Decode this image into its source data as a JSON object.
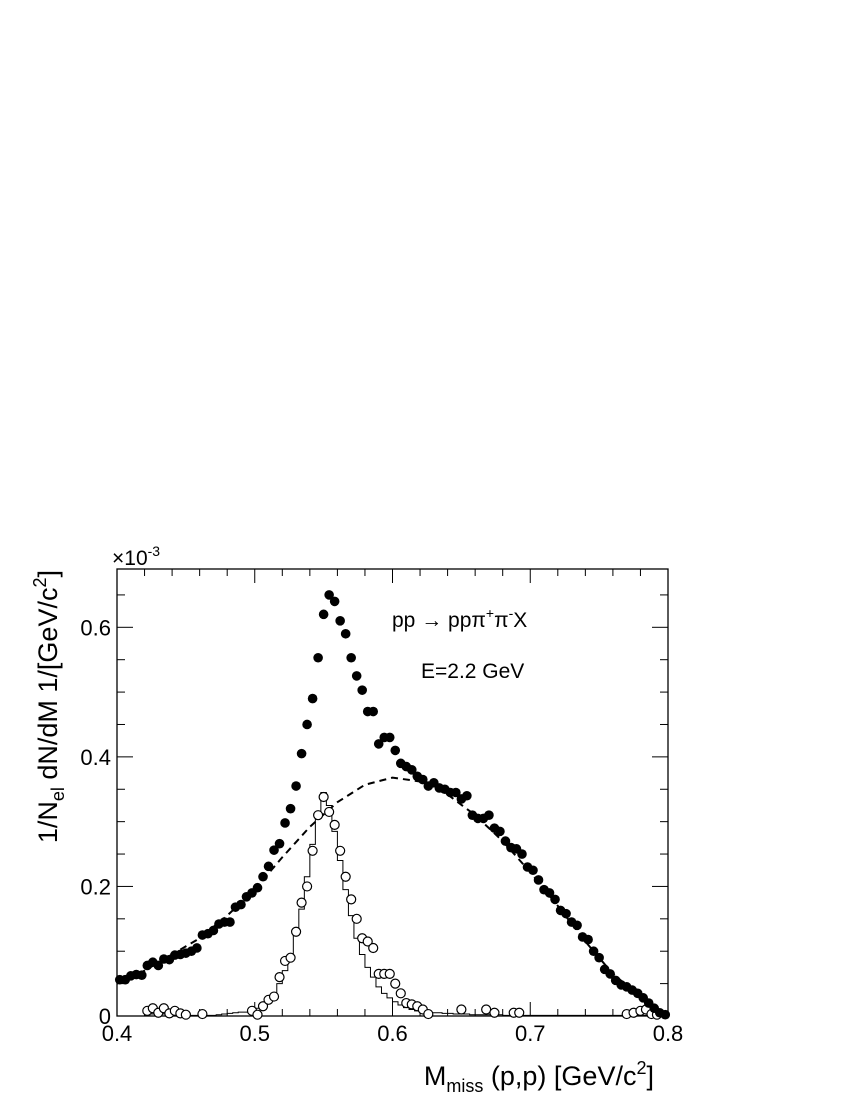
{
  "chart_data": {
    "type": "scatter",
    "title": "",
    "xlabel": {
      "main": "M",
      "sub": "miss",
      "rest": " (p,p) [GeV/c",
      "sup": "2",
      "end": "]"
    },
    "ylabel": {
      "pre": "1/N",
      "sub": "el",
      "rest": " dN/dM 1/[GeV/c",
      "sup": "2",
      "end": "]"
    },
    "y_multiplier": {
      "prefix": "×10",
      "exponent": "-3"
    },
    "xlim": [
      0.4,
      0.8
    ],
    "ylim": [
      0,
      0.69
    ],
    "x_ticks": [
      0.4,
      0.5,
      0.6,
      0.7,
      0.8
    ],
    "x_tick_labels": [
      "0.4",
      "0.5",
      "0.6",
      "0.7",
      "0.8"
    ],
    "y_ticks": [
      0,
      0.2,
      0.4,
      0.6
    ],
    "y_tick_labels": [
      "0",
      "0.2",
      "0.4",
      "0.6"
    ],
    "annotations": {
      "reaction": {
        "lhs": "pp → ppπ",
        "sup1": "+",
        "mid": "π",
        "sup2": "-",
        "end": "X"
      },
      "energy": "E=2.2 GeV"
    },
    "series": [
      {
        "style": "filled-circles",
        "points": [
          [
            0.402,
            0.056
          ],
          [
            0.406,
            0.056
          ],
          [
            0.41,
            0.062
          ],
          [
            0.414,
            0.064
          ],
          [
            0.418,
            0.063
          ],
          [
            0.422,
            0.078
          ],
          [
            0.426,
            0.083
          ],
          [
            0.43,
            0.078
          ],
          [
            0.434,
            0.088
          ],
          [
            0.438,
            0.087
          ],
          [
            0.442,
            0.094
          ],
          [
            0.446,
            0.095
          ],
          [
            0.45,
            0.097
          ],
          [
            0.454,
            0.1
          ],
          [
            0.458,
            0.105
          ],
          [
            0.462,
            0.125
          ],
          [
            0.466,
            0.127
          ],
          [
            0.47,
            0.132
          ],
          [
            0.474,
            0.142
          ],
          [
            0.478,
            0.145
          ],
          [
            0.482,
            0.145
          ],
          [
            0.486,
            0.168
          ],
          [
            0.49,
            0.172
          ],
          [
            0.494,
            0.184
          ],
          [
            0.498,
            0.19
          ],
          [
            0.502,
            0.198
          ],
          [
            0.506,
            0.215
          ],
          [
            0.51,
            0.231
          ],
          [
            0.514,
            0.256
          ],
          [
            0.518,
            0.266
          ],
          [
            0.522,
            0.298
          ],
          [
            0.526,
            0.32
          ],
          [
            0.53,
            0.355
          ],
          [
            0.534,
            0.405
          ],
          [
            0.538,
            0.45
          ],
          [
            0.542,
            0.49
          ],
          [
            0.546,
            0.553
          ],
          [
            0.55,
            0.62
          ],
          [
            0.554,
            0.65
          ],
          [
            0.558,
            0.64
          ],
          [
            0.562,
            0.61
          ],
          [
            0.566,
            0.59
          ],
          [
            0.57,
            0.553
          ],
          [
            0.574,
            0.525
          ],
          [
            0.578,
            0.503
          ],
          [
            0.582,
            0.47
          ],
          [
            0.586,
            0.47
          ],
          [
            0.59,
            0.42
          ],
          [
            0.594,
            0.43
          ],
          [
            0.598,
            0.43
          ],
          [
            0.602,
            0.41
          ],
          [
            0.606,
            0.39
          ],
          [
            0.61,
            0.385
          ],
          [
            0.614,
            0.38
          ],
          [
            0.618,
            0.37
          ],
          [
            0.622,
            0.365
          ],
          [
            0.626,
            0.355
          ],
          [
            0.63,
            0.36
          ],
          [
            0.634,
            0.352
          ],
          [
            0.638,
            0.35
          ],
          [
            0.642,
            0.345
          ],
          [
            0.646,
            0.345
          ],
          [
            0.65,
            0.335
          ],
          [
            0.654,
            0.34
          ],
          [
            0.658,
            0.31
          ],
          [
            0.662,
            0.305
          ],
          [
            0.666,
            0.305
          ],
          [
            0.67,
            0.31
          ],
          [
            0.674,
            0.29
          ],
          [
            0.678,
            0.285
          ],
          [
            0.682,
            0.27
          ],
          [
            0.686,
            0.26
          ],
          [
            0.69,
            0.258
          ],
          [
            0.694,
            0.25
          ],
          [
            0.698,
            0.23
          ],
          [
            0.702,
            0.225
          ],
          [
            0.706,
            0.21
          ],
          [
            0.71,
            0.195
          ],
          [
            0.714,
            0.19
          ],
          [
            0.718,
            0.18
          ],
          [
            0.722,
            0.163
          ],
          [
            0.726,
            0.158
          ],
          [
            0.73,
            0.145
          ],
          [
            0.734,
            0.14
          ],
          [
            0.738,
            0.122
          ],
          [
            0.742,
            0.118
          ],
          [
            0.746,
            0.1
          ],
          [
            0.75,
            0.09
          ],
          [
            0.754,
            0.072
          ],
          [
            0.758,
            0.065
          ],
          [
            0.762,
            0.055
          ],
          [
            0.766,
            0.048
          ],
          [
            0.77,
            0.045
          ],
          [
            0.774,
            0.04
          ],
          [
            0.778,
            0.035
          ],
          [
            0.782,
            0.028
          ],
          [
            0.786,
            0.02
          ],
          [
            0.79,
            0.012
          ],
          [
            0.794,
            0.005
          ],
          [
            0.798,
            0.002
          ]
        ]
      },
      {
        "style": "open-circles",
        "points": [
          [
            0.422,
            0.008
          ],
          [
            0.426,
            0.012
          ],
          [
            0.43,
            0.005
          ],
          [
            0.434,
            0.012
          ],
          [
            0.438,
            0.004
          ],
          [
            0.442,
            0.008
          ],
          [
            0.446,
            0.004
          ],
          [
            0.45,
            0.002
          ],
          [
            0.462,
            0.003
          ],
          [
            0.498,
            0.008
          ],
          [
            0.502,
            0.002
          ],
          [
            0.506,
            0.015
          ],
          [
            0.51,
            0.025
          ],
          [
            0.514,
            0.03
          ],
          [
            0.518,
            0.06
          ],
          [
            0.522,
            0.085
          ],
          [
            0.526,
            0.09
          ],
          [
            0.53,
            0.13
          ],
          [
            0.534,
            0.175
          ],
          [
            0.538,
            0.2
          ],
          [
            0.542,
            0.255
          ],
          [
            0.546,
            0.31
          ],
          [
            0.55,
            0.338
          ],
          [
            0.554,
            0.315
          ],
          [
            0.558,
            0.295
          ],
          [
            0.562,
            0.255
          ],
          [
            0.566,
            0.215
          ],
          [
            0.57,
            0.18
          ],
          [
            0.574,
            0.15
          ],
          [
            0.578,
            0.12
          ],
          [
            0.582,
            0.115
          ],
          [
            0.586,
            0.105
          ],
          [
            0.59,
            0.065
          ],
          [
            0.594,
            0.065
          ],
          [
            0.598,
            0.065
          ],
          [
            0.602,
            0.05
          ],
          [
            0.606,
            0.035
          ],
          [
            0.61,
            0.02
          ],
          [
            0.614,
            0.018
          ],
          [
            0.618,
            0.015
          ],
          [
            0.622,
            0.01
          ],
          [
            0.626,
            0.003
          ],
          [
            0.65,
            0.01
          ],
          [
            0.668,
            0.01
          ],
          [
            0.674,
            0.005
          ],
          [
            0.688,
            0.005
          ],
          [
            0.692,
            0.005
          ],
          [
            0.77,
            0.003
          ],
          [
            0.775,
            0.005
          ],
          [
            0.78,
            0.008
          ],
          [
            0.784,
            0.01
          ],
          [
            0.788,
            0.003
          ],
          [
            0.792,
            0.002
          ]
        ]
      },
      {
        "style": "histogram",
        "bin_width": 0.004,
        "bins": [
          [
            0.4,
            0
          ],
          [
            0.404,
            0
          ],
          [
            0.408,
            0
          ],
          [
            0.412,
            0
          ],
          [
            0.416,
            0
          ],
          [
            0.42,
            0.002
          ],
          [
            0.424,
            0.003
          ],
          [
            0.428,
            0.002
          ],
          [
            0.432,
            0.003
          ],
          [
            0.436,
            0.002
          ],
          [
            0.44,
            0.002
          ],
          [
            0.444,
            0.001
          ],
          [
            0.448,
            0.001
          ],
          [
            0.452,
            0.001
          ],
          [
            0.456,
            0.001
          ],
          [
            0.46,
            0.002
          ],
          [
            0.464,
            0.001
          ],
          [
            0.468,
            0.001
          ],
          [
            0.472,
            0.002
          ],
          [
            0.476,
            0.003
          ],
          [
            0.48,
            0.004
          ],
          [
            0.484,
            0.005
          ],
          [
            0.488,
            0.006
          ],
          [
            0.492,
            0.006
          ],
          [
            0.496,
            0.008
          ],
          [
            0.5,
            0.012
          ],
          [
            0.504,
            0.018
          ],
          [
            0.508,
            0.025
          ],
          [
            0.512,
            0.035
          ],
          [
            0.516,
            0.05
          ],
          [
            0.52,
            0.07
          ],
          [
            0.524,
            0.095
          ],
          [
            0.528,
            0.125
          ],
          [
            0.532,
            0.165
          ],
          [
            0.536,
            0.215
          ],
          [
            0.54,
            0.265
          ],
          [
            0.544,
            0.31
          ],
          [
            0.548,
            0.345
          ],
          [
            0.552,
            0.325
          ],
          [
            0.556,
            0.285
          ],
          [
            0.56,
            0.24
          ],
          [
            0.564,
            0.195
          ],
          [
            0.568,
            0.155
          ],
          [
            0.572,
            0.12
          ],
          [
            0.576,
            0.095
          ],
          [
            0.58,
            0.075
          ],
          [
            0.584,
            0.06
          ],
          [
            0.588,
            0.045
          ],
          [
            0.592,
            0.035
          ],
          [
            0.596,
            0.028
          ],
          [
            0.6,
            0.022
          ],
          [
            0.604,
            0.017
          ],
          [
            0.608,
            0.013
          ],
          [
            0.612,
            0.01
          ],
          [
            0.616,
            0.008
          ],
          [
            0.62,
            0.007
          ],
          [
            0.624,
            0.006
          ],
          [
            0.628,
            0.005
          ],
          [
            0.632,
            0.005
          ],
          [
            0.636,
            0.004
          ],
          [
            0.64,
            0.004
          ],
          [
            0.644,
            0.003
          ],
          [
            0.648,
            0.003
          ],
          [
            0.652,
            0.003
          ],
          [
            0.656,
            0.002
          ],
          [
            0.66,
            0.002
          ],
          [
            0.664,
            0.002
          ],
          [
            0.668,
            0.002
          ],
          [
            0.672,
            0.002
          ],
          [
            0.676,
            0.002
          ],
          [
            0.68,
            0.001
          ],
          [
            0.684,
            0.001
          ],
          [
            0.688,
            0.001
          ],
          [
            0.692,
            0.001
          ],
          [
            0.696,
            0.001
          ],
          [
            0.7,
            0.001
          ],
          [
            0.704,
            0.001
          ],
          [
            0.708,
            0.001
          ],
          [
            0.712,
            0.001
          ],
          [
            0.716,
            0.001
          ],
          [
            0.72,
            0.001
          ],
          [
            0.724,
            0.001
          ],
          [
            0.728,
            0.001
          ],
          [
            0.732,
            0.001
          ],
          [
            0.736,
            0.001
          ],
          [
            0.74,
            0.001
          ],
          [
            0.744,
            0.001
          ],
          [
            0.748,
            0.001
          ],
          [
            0.752,
            0.001
          ],
          [
            0.756,
            0.001
          ],
          [
            0.76,
            0.001
          ],
          [
            0.764,
            0.001
          ],
          [
            0.768,
            0.001
          ],
          [
            0.772,
            0.001
          ],
          [
            0.776,
            0.001
          ],
          [
            0.78,
            0.001
          ],
          [
            0.784,
            0.001
          ],
          [
            0.788,
            0.001
          ],
          [
            0.792,
            0.0
          ],
          [
            0.796,
            0.0
          ]
        ]
      },
      {
        "style": "dashed-line",
        "points": [
          [
            0.4,
            0.05
          ],
          [
            0.42,
            0.07
          ],
          [
            0.44,
            0.095
          ],
          [
            0.46,
            0.12
          ],
          [
            0.48,
            0.155
          ],
          [
            0.5,
            0.195
          ],
          [
            0.52,
            0.245
          ],
          [
            0.54,
            0.292
          ],
          [
            0.56,
            0.33
          ],
          [
            0.58,
            0.357
          ],
          [
            0.6,
            0.368
          ],
          [
            0.62,
            0.362
          ],
          [
            0.64,
            0.342
          ],
          [
            0.66,
            0.31
          ],
          [
            0.68,
            0.27
          ],
          [
            0.7,
            0.222
          ],
          [
            0.72,
            0.17
          ],
          [
            0.74,
            0.115
          ],
          [
            0.76,
            0.065
          ],
          [
            0.78,
            0.03
          ],
          [
            0.8,
            0.0
          ]
        ]
      }
    ]
  }
}
